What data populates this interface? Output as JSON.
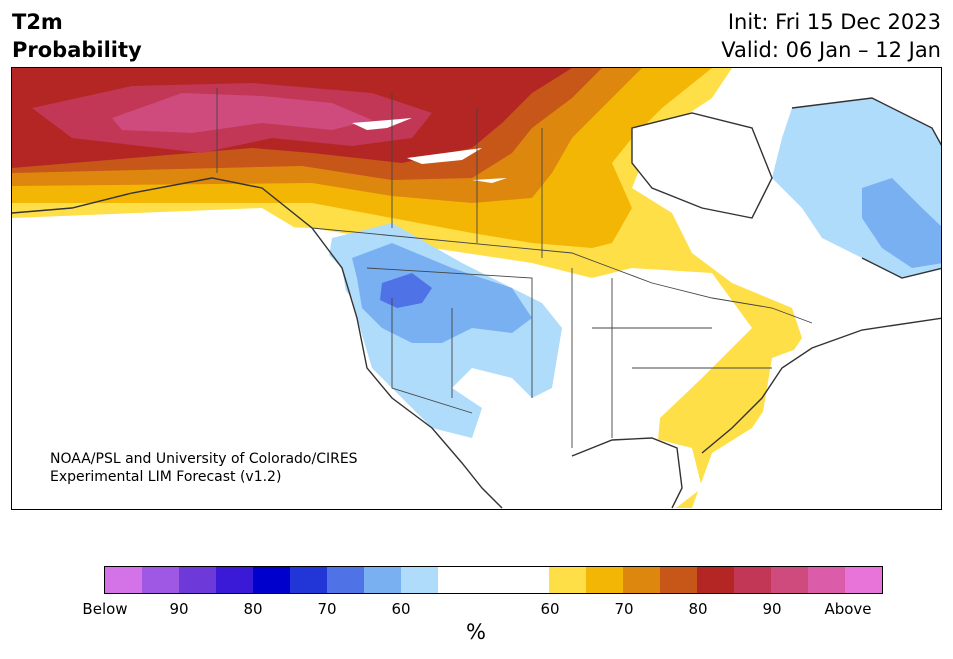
{
  "header": {
    "variable": "T2m",
    "quantity": "Probability",
    "init": "Init: Fri 15 Dec 2023",
    "valid": "Valid: 06 Jan – 12 Jan"
  },
  "credit": {
    "line1": "NOAA/PSL and University of Colorado/CIRES",
    "line2": "Experimental LIM Forecast (v1.2)"
  },
  "colorbar": {
    "unit": "%",
    "below_colors": [
      "#d473e8",
      "#9f58e3",
      "#6d3ad9",
      "#3a1ad6",
      "#0000cc",
      "#2236d8",
      "#4f72e6",
      "#78b0f2",
      "#b0dcfb"
    ],
    "neutral_color": "#ffffff",
    "above_colors": [
      "#fedf48",
      "#f3b605",
      "#de870f",
      "#c75619",
      "#b32624",
      "#c23755",
      "#cf4b7d",
      "#db5ca8",
      "#e874d9"
    ],
    "tick_labels": [
      "Below",
      "90",
      "80",
      "70",
      "60",
      "60",
      "70",
      "80",
      "90",
      "Above"
    ]
  },
  "map": {
    "ocean_color": "#ffffff",
    "outline_color": "#333333"
  }
}
